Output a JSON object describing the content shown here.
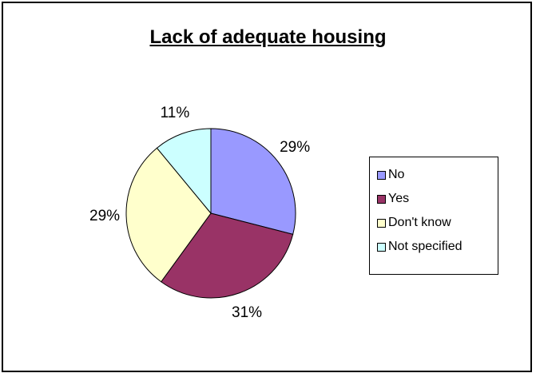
{
  "chart_data": {
    "type": "pie",
    "title": "Lack of adequate housing",
    "categories": [
      "No",
      "Yes",
      "Don't know",
      "Not specified"
    ],
    "values": [
      29,
      31,
      29,
      11
    ],
    "labels": [
      "29%",
      "31%",
      "29%",
      "11%"
    ],
    "colors": [
      "#9999FF",
      "#993366",
      "#FFFFCC",
      "#CCFFFF"
    ],
    "legend_position": "right"
  }
}
